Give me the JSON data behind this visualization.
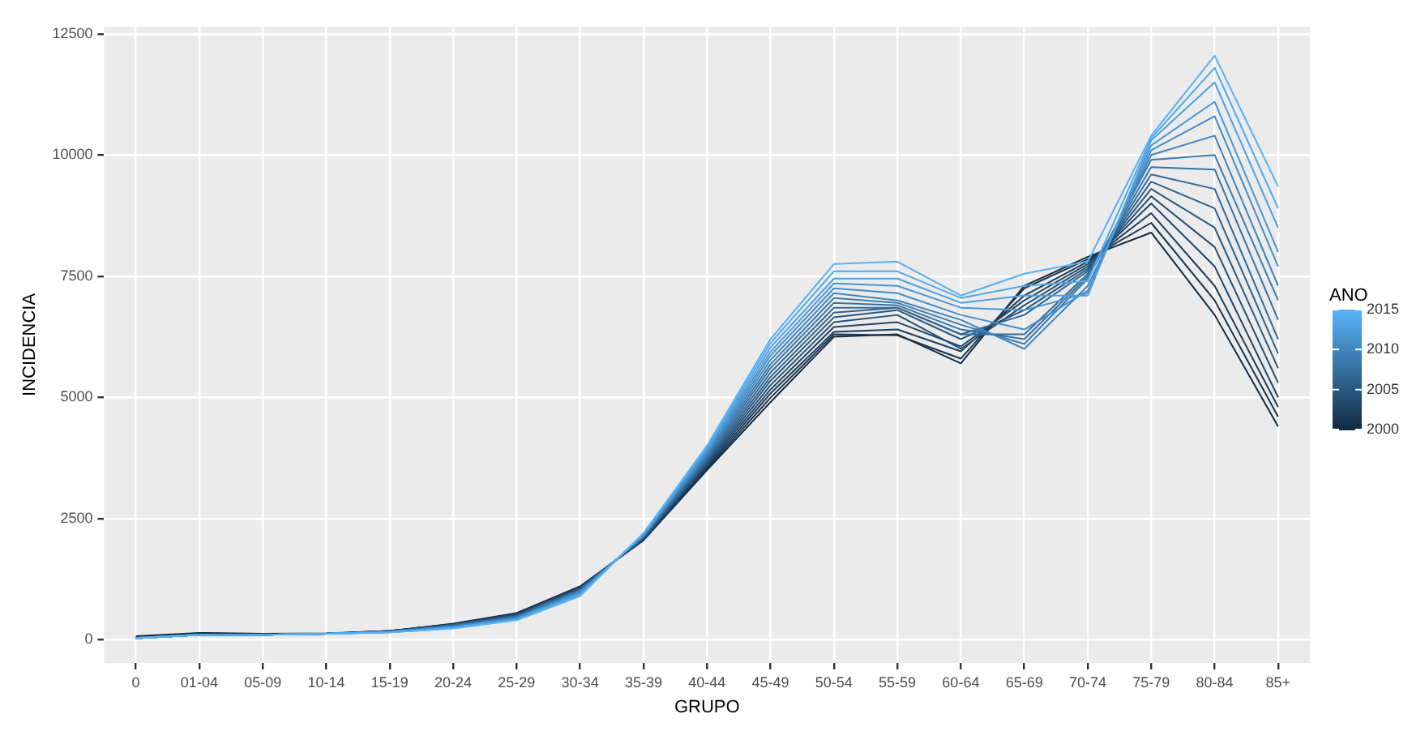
{
  "chart_data": {
    "type": "line",
    "xlabel": "GRUPO",
    "ylabel": "INCIDENCIA",
    "clabel": "ANO",
    "clim": [
      2000,
      2015
    ],
    "cticks": [
      2000,
      2005,
      2010,
      2015
    ],
    "categories": [
      "0",
      "01-04",
      "05-09",
      "10-14",
      "15-19",
      "20-24",
      "25-29",
      "30-34",
      "35-39",
      "40-44",
      "45-49",
      "50-54",
      "55-59",
      "60-64",
      "65-69",
      "70-74",
      "75-79",
      "80-84",
      "85+"
    ],
    "ylim": [
      -480,
      12650
    ],
    "yticks": [
      0,
      2500,
      5000,
      7500,
      10000,
      12500
    ],
    "grid": true,
    "series": [
      {
        "color": "#132b43",
        "values": [
          70,
          140,
          120,
          130,
          180,
          330,
          550,
          1100,
          2050,
          3500,
          4900,
          6250,
          6300,
          5700,
          7300,
          7900,
          8400,
          6700,
          4400
        ]
      },
      {
        "color": "#18344f",
        "values": [
          30,
          100,
          100,
          120,
          180,
          320,
          540,
          1090,
          2060,
          3530,
          4990,
          6300,
          6280,
          5800,
          7250,
          7850,
          8600,
          7000,
          4600
        ]
      },
      {
        "color": "#1c3d5b",
        "values": [
          30,
          100,
          100,
          120,
          180,
          320,
          530,
          1080,
          2070,
          3560,
          5080,
          6350,
          6400,
          5950,
          7100,
          7800,
          8800,
          7300,
          4800
        ]
      },
      {
        "color": "#204667",
        "values": [
          30,
          100,
          100,
          120,
          170,
          310,
          520,
          1070,
          2080,
          3600,
          5160,
          6450,
          6550,
          6050,
          7000,
          7750,
          9000,
          7700,
          5000
        ]
      },
      {
        "color": "#254f73",
        "values": [
          30,
          100,
          100,
          120,
          170,
          310,
          510,
          1060,
          2090,
          3630,
          5250,
          6550,
          6700,
          6000,
          6900,
          7700,
          9150,
          8100,
          5300
        ]
      },
      {
        "color": "#29587f",
        "values": [
          30,
          100,
          100,
          120,
          170,
          300,
          500,
          1050,
          2100,
          3660,
          5340,
          6650,
          6800,
          6200,
          6800,
          7650,
          9300,
          8500,
          5600
        ]
      },
      {
        "color": "#2e618b",
        "values": [
          30,
          100,
          100,
          120,
          170,
          300,
          490,
          1040,
          2110,
          3700,
          5420,
          6750,
          6850,
          6300,
          6700,
          7600,
          9450,
          8900,
          5900
        ]
      },
      {
        "color": "#326a97",
        "values": [
          30,
          100,
          100,
          120,
          170,
          290,
          480,
          1030,
          2120,
          3730,
          5510,
          6850,
          6850,
          6300,
          6300,
          7550,
          9600,
          9300,
          6200
        ]
      },
      {
        "color": "#3772a3",
        "values": [
          30,
          100,
          100,
          120,
          160,
          280,
          470,
          1010,
          2130,
          3760,
          5600,
          6950,
          6900,
          6400,
          6200,
          7500,
          9750,
          9700,
          6600
        ]
      },
      {
        "color": "#3b7baf",
        "values": [
          30,
          100,
          100,
          120,
          160,
          280,
          460,
          1000,
          2140,
          3800,
          5680,
          7050,
          6950,
          6500,
          6100,
          7450,
          9900,
          10000,
          7000
        ]
      },
      {
        "color": "#4084bb",
        "values": [
          30,
          100,
          100,
          120,
          160,
          270,
          450,
          990,
          2150,
          3830,
          5770,
          7150,
          7000,
          6600,
          6000,
          7300,
          10000,
          10400,
          7300
        ]
      },
      {
        "color": "#448dc7",
        "values": [
          30,
          100,
          100,
          120,
          160,
          260,
          440,
          980,
          2160,
          3860,
          5860,
          7250,
          7150,
          6700,
          6400,
          7200,
          10100,
          10800,
          7700
        ]
      },
      {
        "color": "#4996d3",
        "values": [
          30,
          100,
          100,
          120,
          160,
          260,
          430,
          960,
          2170,
          3900,
          5940,
          7350,
          7300,
          6850,
          6800,
          7150,
          10200,
          11100,
          8000
        ]
      },
      {
        "color": "#4d9fdf",
        "values": [
          30,
          100,
          100,
          120,
          150,
          250,
          420,
          940,
          2180,
          3930,
          6030,
          7450,
          7450,
          6950,
          7100,
          7100,
          10300,
          11500,
          8500
        ]
      },
      {
        "color": "#52a8eb",
        "values": [
          30,
          100,
          100,
          120,
          150,
          240,
          410,
          920,
          2190,
          3960,
          6120,
          7600,
          7600,
          7050,
          7300,
          7400,
          10350,
          11800,
          8900
        ]
      },
      {
        "color": "#56b1f7",
        "values": [
          30,
          100,
          100,
          120,
          150,
          230,
          400,
          900,
          2200,
          4000,
          6200,
          7750,
          7800,
          7100,
          7550,
          7800,
          10400,
          12050,
          9350
        ]
      }
    ]
  }
}
